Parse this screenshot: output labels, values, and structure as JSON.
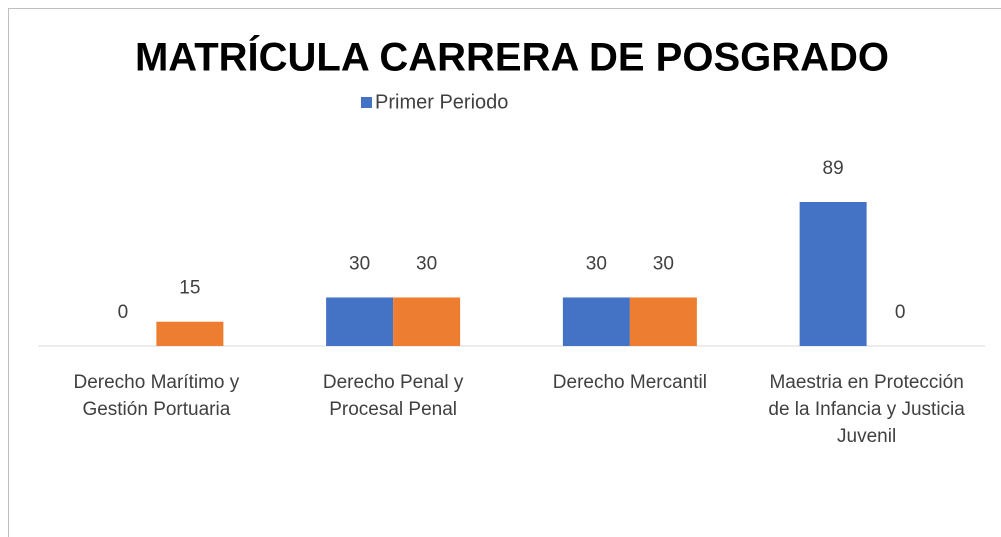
{
  "chart_data": {
    "type": "bar",
    "title": "MATRÍCULA CARRERA  DE POSGRADO",
    "categories": [
      "Derecho Marítimo y Gestión Portuaria",
      "Derecho Penal y Procesal Penal",
      "Derecho Mercantil",
      "Maestria en Protección de la Infancia y Justicia Juvenil"
    ],
    "series": [
      {
        "name": "Primer Periodo",
        "color": "#4472c4",
        "values": [
          0,
          30,
          30,
          89
        ]
      },
      {
        "color": "#ed7d31",
        "values": [
          15,
          30,
          30,
          0
        ]
      }
    ]
  }
}
